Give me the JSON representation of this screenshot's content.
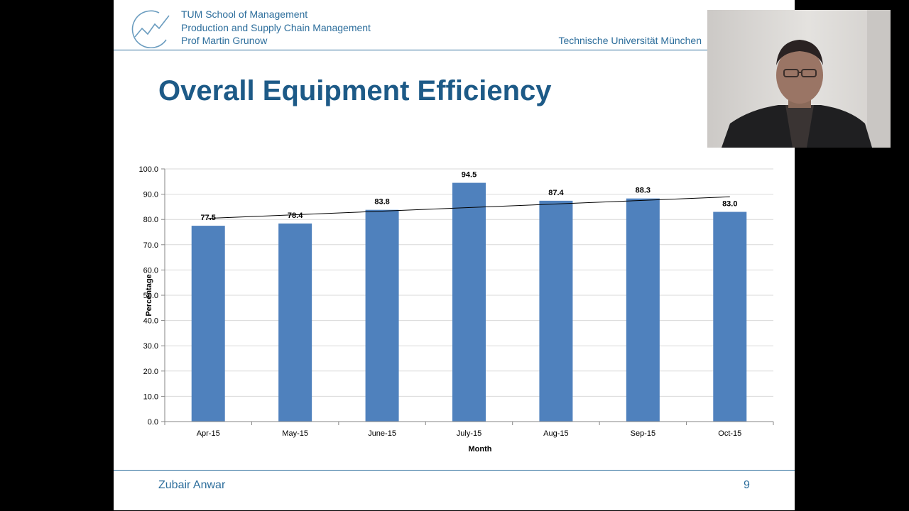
{
  "header": {
    "line1": "TUM School of Management",
    "line2": "Production and Supply Chain Management",
    "line3": "Prof Martin Grunow",
    "university": "Technische Universität München"
  },
  "slide_title": "Overall Equipment Efficiency",
  "footer": {
    "author": "Zubair Anwar",
    "page": "9"
  },
  "colors": {
    "bar": "#4f81bd",
    "accent": "#2d6e9c",
    "title": "#1d5a87"
  },
  "chart_data": {
    "type": "bar",
    "categories": [
      "Apr-15",
      "May-15",
      "June-15",
      "July-15",
      "Aug-15",
      "Sep-15",
      "Oct-15"
    ],
    "values": [
      77.5,
      78.4,
      83.8,
      94.5,
      87.4,
      88.3,
      83.0
    ],
    "data_labels": [
      "77.5",
      "78.4",
      "83.8",
      "94.5",
      "87.4",
      "88.3",
      "83.0"
    ],
    "xlabel": "Month",
    "ylabel": "Percentage",
    "ylim": [
      0,
      100
    ],
    "yticks": [
      "0.0",
      "10.0",
      "20.0",
      "30.0",
      "40.0",
      "50.0",
      "60.0",
      "70.0",
      "80.0",
      "90.0",
      "100.0"
    ],
    "grid": true,
    "trendline": true
  },
  "webcam": {
    "icon": "presenter-video"
  }
}
